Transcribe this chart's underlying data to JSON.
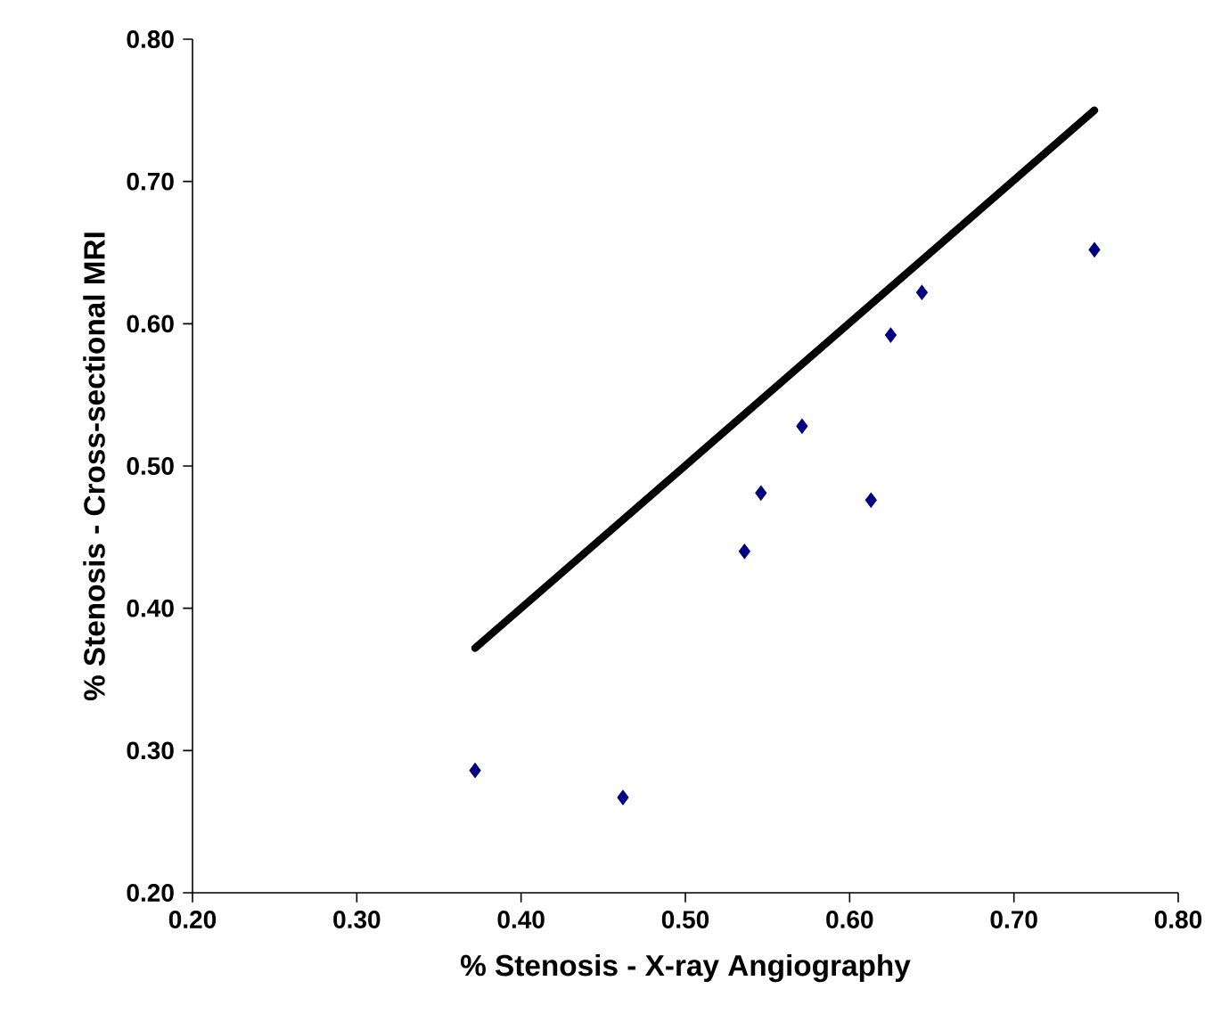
{
  "chart_data": {
    "type": "scatter",
    "xlabel": "% Stenosis - X-ray Angiography",
    "ylabel": "% Stenosis - Cross-sectional MRI",
    "xlim": [
      0.2,
      0.8
    ],
    "ylim": [
      0.2,
      0.8
    ],
    "xticks": [
      {
        "value": 0.2,
        "label": "0.20"
      },
      {
        "value": 0.3,
        "label": "0.30"
      },
      {
        "value": 0.4,
        "label": "0.40"
      },
      {
        "value": 0.5,
        "label": "0.50"
      },
      {
        "value": 0.6,
        "label": "0.60"
      },
      {
        "value": 0.7,
        "label": "0.70"
      },
      {
        "value": 0.8,
        "label": "0.80"
      }
    ],
    "yticks": [
      {
        "value": 0.2,
        "label": "0.20"
      },
      {
        "value": 0.3,
        "label": "0.30"
      },
      {
        "value": 0.4,
        "label": "0.40"
      },
      {
        "value": 0.5,
        "label": "0.50"
      },
      {
        "value": 0.6,
        "label": "0.60"
      },
      {
        "value": 0.7,
        "label": "0.70"
      },
      {
        "value": 0.8,
        "label": "0.80"
      }
    ],
    "series": [
      {
        "color": "#000080",
        "marker": "diamond",
        "x": [
          0.372,
          0.462,
          0.536,
          0.546,
          0.571,
          0.613,
          0.625,
          0.644,
          0.749
        ],
        "values": [
          0.286,
          0.267,
          0.44,
          0.481,
          0.528,
          0.476,
          0.592,
          0.622,
          0.652
        ]
      },
      {
        "type": "line",
        "color": "#000000",
        "marker": "none",
        "line_style": "solid",
        "x": [
          0.372,
          0.749
        ],
        "values": [
          0.372,
          0.75
        ]
      }
    ]
  }
}
